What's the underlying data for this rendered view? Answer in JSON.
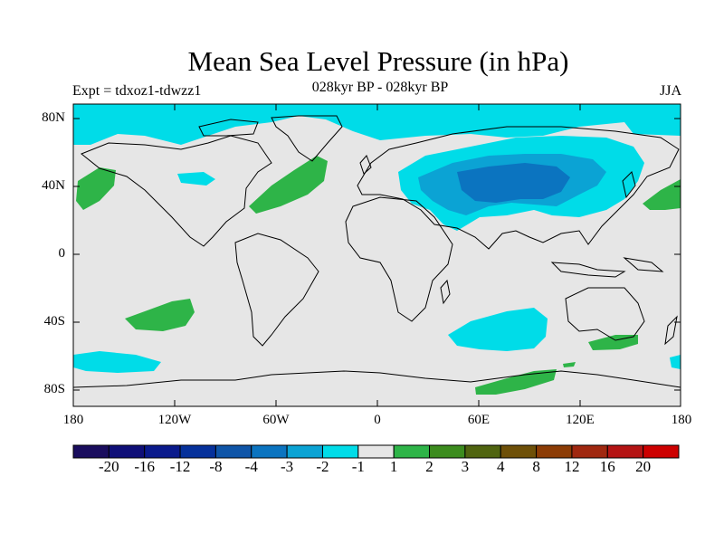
{
  "title": "Mean Sea Level Pressure (in hPa)",
  "experiment": "Expt = tdxoz1-tdwzz1",
  "period": "028kyr BP - 028kyr BP",
  "season": "JJA",
  "y_ticks": [
    "80N",
    "40N",
    "0",
    "40S",
    "80S"
  ],
  "x_ticks": [
    "180",
    "120W",
    "60W",
    "0",
    "60E",
    "120E",
    "180"
  ],
  "colorbar": {
    "labels": [
      "-20",
      "-16",
      "-12",
      "-8",
      "-4",
      "-3",
      "-2",
      "-1",
      "1",
      "2",
      "3",
      "4",
      "8",
      "12",
      "16",
      "20"
    ],
    "colors": [
      "#1a0d5e",
      "#0f0f78",
      "#0a1a8c",
      "#06319b",
      "#0f55a8",
      "#0b74c0",
      "#0ba3d4",
      "#00dce8",
      "#e6e6e6",
      "#2eb448",
      "#3c8c1e",
      "#506410",
      "#6e5008",
      "#8c3c05",
      "#a02810",
      "#b41414",
      "#cd0000"
    ]
  },
  "colors": {
    "land_ocean_neutral": "#e6e6e6",
    "neg_weak": "#00dce8",
    "neg_mid": "#0ba3d4",
    "neg_strong": "#0b74c0",
    "pos_weak": "#2eb448"
  }
}
